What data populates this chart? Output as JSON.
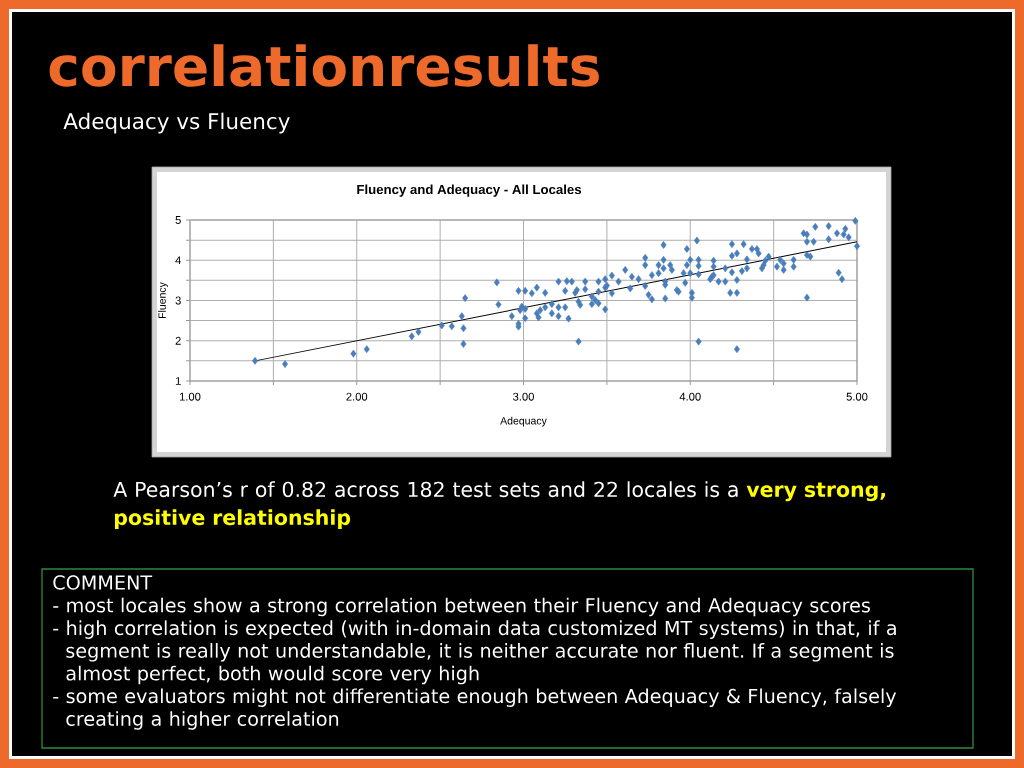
{
  "chart_data": {
    "type": "scatter",
    "title": "Fluency and Adequacy - All Locales",
    "xlabel": "Adequacy",
    "ylabel": "Fluency",
    "annotations": [
      "correlationresults",
      "Adequacy vs Fluency",
      "A Pearson’s r of 0.82 across 182 test sets and 22 locales is a **very strong, positive relationship**",
      "COMMENT",
      "- most locales show a strong correlation between their Fluency and Adequacy scores",
      "- high correlation is expected (with in-domain data customized MT systems) in that, if a segment is really not understandable, it is neither accurate nor fluent. If a segment is almost perfect, both would score very high",
      "- some evaluators might not differentiate enough between Adequacy & Fluency, falsely creating a higher correlation"
    ],
    "xlim": [
      1,
      5
    ],
    "ylim": [
      1,
      5
    ],
    "xticks": [
      {
        "value": 1,
        "label": "1.00"
      },
      {
        "value": 1.5,
        "label": null
      },
      {
        "value": 2,
        "label": "2.00"
      },
      {
        "value": 2.5,
        "label": null
      },
      {
        "value": 3,
        "label": "3.00"
      },
      {
        "value": 3.5,
        "label": null
      },
      {
        "value": 4,
        "label": "4.00"
      },
      {
        "value": 4.5,
        "label": null
      },
      {
        "value": 5,
        "label": "5.00"
      }
    ],
    "yticks": [
      1,
      {
        "value": 1.5,
        "label": null
      },
      2,
      {
        "value": 2.5,
        "label": null
      },
      3,
      {
        "value": 3.5,
        "label": null
      },
      4,
      {
        "value": 4.5,
        "label": null
      },
      5
    ],
    "grid": true,
    "marker": "diamond",
    "series": [
      {
        "color": "#4a7ebb",
        "x": [
          1.39,
          1.57,
          1.98,
          2.06,
          2.33,
          2.37,
          2.51,
          2.57,
          2.63,
          2.64,
          2.65,
          2.64,
          2.84,
          2.85,
          2.93,
          2.97,
          2.97,
          2.97,
          2.98,
          2.99,
          3.01,
          3.01,
          3.01,
          3.05,
          3.08,
          3.08,
          3.09,
          3.1,
          3.13,
          3.13,
          3.17,
          3.17,
          3.21,
          3.21,
          3.21,
          3.25,
          3.25,
          3.26,
          3.27,
          3.29,
          3.31,
          3.32,
          3.33,
          3.33,
          3.34,
          3.37,
          3.37,
          3.41,
          3.41,
          3.43,
          3.45,
          3.45,
          3.45,
          3.49,
          3.49,
          3.49,
          3.5,
          3.53,
          3.53,
          3.57,
          3.61,
          3.64,
          3.65,
          3.69,
          3.73,
          3.73,
          3.73,
          3.75,
          3.77,
          3.77,
          3.81,
          3.81,
          3.84,
          3.84,
          3.84,
          3.85,
          3.85,
          3.85,
          3.88,
          3.89,
          3.92,
          3.93,
          3.96,
          3.97,
          3.98,
          3.98,
          4.0,
          4.0,
          4.01,
          4.01,
          4.04,
          4.05,
          4.05,
          4.05,
          4.05,
          4.12,
          4.13,
          4.14,
          4.14,
          4.14,
          4.17,
          4.21,
          4.21,
          4.24,
          4.25,
          4.25,
          4.25,
          4.28,
          4.28,
          4.28,
          4.28,
          4.31,
          4.32,
          4.34,
          4.34,
          4.37,
          4.4,
          4.41,
          4.43,
          4.44,
          4.45,
          4.47,
          4.52,
          4.54,
          4.56,
          4.56,
          4.62,
          4.62,
          4.68,
          4.7,
          4.7,
          4.7,
          4.7,
          4.72,
          4.74,
          4.75,
          4.83,
          4.83,
          4.88,
          4.89,
          4.91,
          4.92,
          4.93,
          4.95,
          4.99,
          5.0
        ],
        "values": [
          1.5,
          1.42,
          1.68,
          1.79,
          2.11,
          2.22,
          2.38,
          2.36,
          2.61,
          2.31,
          3.06,
          1.92,
          3.45,
          2.9,
          2.61,
          3.24,
          2.35,
          2.42,
          2.76,
          2.85,
          2.79,
          2.56,
          3.24,
          3.18,
          3.32,
          2.68,
          2.58,
          2.76,
          3.19,
          2.83,
          2.91,
          2.68,
          3.47,
          2.83,
          2.61,
          3.24,
          2.83,
          3.48,
          2.55,
          3.47,
          3.19,
          3.26,
          2.97,
          1.98,
          2.89,
          3.47,
          3.28,
          3.1,
          2.91,
          3.01,
          3.47,
          3.22,
          2.93,
          3.53,
          3.32,
          2.78,
          3.37,
          3.62,
          3.18,
          3.47,
          3.76,
          3.3,
          3.59,
          3.53,
          3.36,
          4.06,
          3.88,
          3.14,
          3.63,
          3.03,
          3.88,
          3.68,
          4.01,
          3.8,
          4.38,
          3.47,
          3.39,
          3.05,
          3.88,
          3.76,
          3.26,
          3.22,
          3.68,
          3.44,
          4.28,
          3.88,
          4.01,
          3.68,
          3.19,
          3.07,
          4.49,
          4.01,
          3.86,
          3.65,
          1.98,
          3.53,
          3.59,
          3.99,
          3.84,
          3.63,
          3.47,
          3.8,
          3.47,
          3.19,
          4.4,
          4.11,
          3.7,
          4.17,
          3.51,
          3.19,
          1.79,
          3.73,
          4.4,
          4.02,
          3.8,
          4.28,
          4.28,
          4.17,
          3.8,
          3.88,
          3.99,
          4.09,
          3.84,
          4.01,
          3.76,
          3.92,
          4.01,
          3.84,
          4.67,
          4.64,
          4.46,
          4.13,
          3.07,
          4.09,
          4.46,
          4.83,
          4.52,
          4.85,
          4.67,
          3.69,
          3.53,
          4.64,
          4.78,
          4.57,
          4.98,
          4.35
        ]
      },
      {
        "type": "line",
        "color": "#000000",
        "marker": "none",
        "x": [
          1.39,
          5.0
        ],
        "values": [
          1.5,
          4.46
        ]
      }
    ]
  }
}
